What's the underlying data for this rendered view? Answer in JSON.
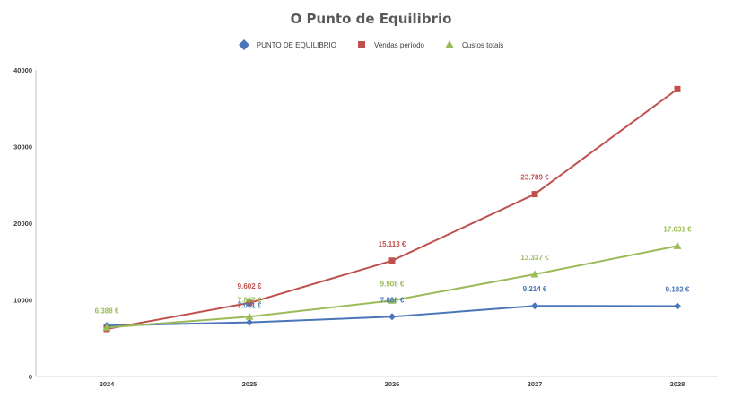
{
  "chart_data": {
    "type": "line",
    "title": "O Punto de Equilibrio",
    "categories": [
      "2024",
      "2025",
      "2026",
      "2027",
      "2028"
    ],
    "ylim": [
      0,
      40000
    ],
    "yticks": [
      "0",
      "10000",
      "20000",
      "30000",
      "40000"
    ],
    "grid": false,
    "legend_position": "top",
    "series": [
      {
        "name": "PUNTO DE EQUILIBRIO",
        "color": "#4a76b8",
        "marker": "diamond",
        "values": [
          6650,
          7061,
          7800,
          9214,
          9182
        ],
        "labels": [
          "",
          "7.061 €",
          "7.800 €",
          "9.214 €",
          "9.182 €"
        ]
      },
      {
        "name": "Vendas período",
        "color": "#c0504d",
        "marker": "square",
        "values": [
          6200,
          9602,
          15113,
          23789,
          37500
        ],
        "labels": [
          "",
          "9.602 €",
          "15.113 €",
          "23.789 €",
          ""
        ]
      },
      {
        "name": "Custos totais",
        "color": "#9bbb59",
        "marker": "triangle",
        "values": [
          6388,
          7807,
          9908,
          13337,
          17031
        ],
        "labels": [
          "6.388 €",
          "7.807 €",
          "9.908 €",
          "13.337 €",
          "17.031 €"
        ]
      }
    ]
  }
}
